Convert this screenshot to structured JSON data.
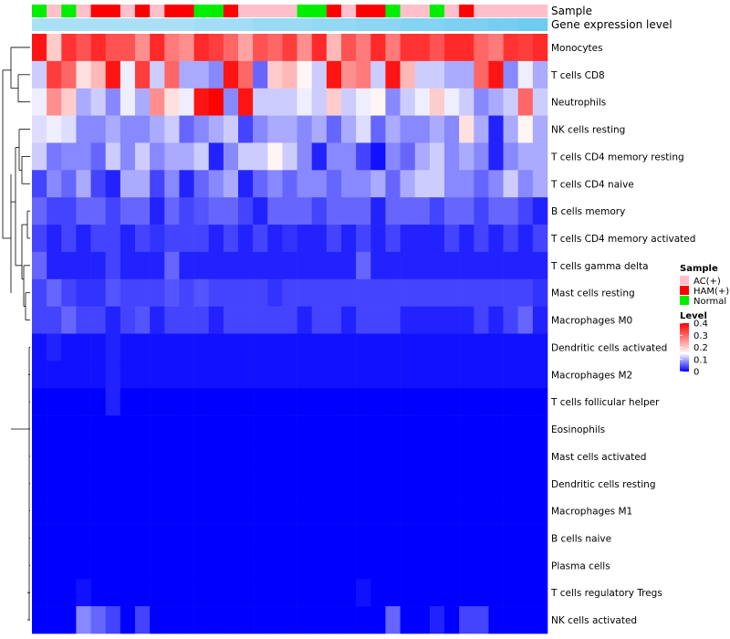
{
  "chart_data": {
    "type": "heatmap",
    "annotation_labels": {
      "sample": "Sample",
      "gene_expression": "Gene expression level"
    },
    "rows": [
      "Monocytes",
      "T cells CD8",
      "Neutrophils",
      "NK cells resting",
      "T cells CD4 memory resting",
      "T cells CD4 naive",
      "B cells memory",
      "T cells CD4 memory activated",
      "T cells gamma delta",
      "Mast cells resting",
      "Macrophages M0",
      "Dendritic cells activated",
      "Macrophages M2",
      "T cells follicular helper",
      "Eosinophils",
      "Mast cells activated",
      "Dendritic cells resting",
      "Macrophages M1",
      "B cells naive",
      "Plasma cells",
      "T cells regulatory  Tregs",
      "NK cells activated"
    ],
    "sample_groups": [
      "Normal",
      "AC(+)",
      "Normal",
      "AC(+)",
      "HAM(+)",
      "HAM(+)",
      "AC(+)",
      "HAM(+)",
      "AC(+)",
      "HAM(+)",
      "HAM(+)",
      "Normal",
      "Normal",
      "HAM(+)",
      "AC(+)",
      "AC(+)",
      "AC(+)",
      "AC(+)",
      "Normal",
      "Normal",
      "HAM(+)",
      "AC(+)",
      "HAM(+)",
      "HAM(+)",
      "Normal",
      "AC(+)",
      "AC(+)",
      "Normal",
      "AC(+)",
      "HAM(+)",
      "AC(+)",
      "AC(+)",
      "AC(+)",
      "AC(+)",
      "AC(+)"
    ],
    "gene_expression_annotation": [
      0.45,
      0.45,
      0.45,
      0.45,
      0.45,
      0.45,
      0.45,
      0.45,
      0.45,
      0.45,
      0.45,
      0.5,
      0.5,
      0.5,
      0.5,
      0.55,
      0.55,
      0.55,
      0.55,
      0.6,
      0.6,
      0.6,
      0.65,
      0.65,
      0.65,
      0.7,
      0.7,
      0.7,
      0.75,
      0.75,
      0.75,
      0.8,
      0.8,
      0.85,
      0.85
    ],
    "values": [
      [
        0.38,
        0.2,
        0.35,
        0.32,
        0.36,
        0.32,
        0.32,
        0.26,
        0.36,
        0.28,
        0.26,
        0.36,
        0.34,
        0.3,
        0.24,
        0.32,
        0.3,
        0.34,
        0.26,
        0.36,
        0.22,
        0.32,
        0.28,
        0.36,
        0.28,
        0.35,
        0.35,
        0.32,
        0.36,
        0.36,
        0.3,
        0.28,
        0.35,
        0.34,
        0.36
      ],
      [
        0.12,
        0.34,
        0.3,
        0.18,
        0.22,
        0.38,
        0.14,
        0.34,
        0.12,
        0.3,
        0.1,
        0.1,
        0.08,
        0.38,
        0.3,
        0.06,
        0.2,
        0.22,
        0.16,
        0.12,
        0.38,
        0.26,
        0.28,
        0.12,
        0.38,
        0.22,
        0.12,
        0.12,
        0.1,
        0.1,
        0.3,
        0.38,
        0.08,
        0.14,
        0.1
      ],
      [
        0.14,
        0.26,
        0.2,
        0.1,
        0.12,
        0.08,
        0.14,
        0.1,
        0.26,
        0.18,
        0.14,
        0.38,
        0.4,
        0.08,
        0.38,
        0.12,
        0.12,
        0.12,
        0.14,
        0.12,
        0.2,
        0.12,
        0.14,
        0.16,
        0.08,
        0.12,
        0.14,
        0.2,
        0.14,
        0.12,
        0.08,
        0.1,
        0.12,
        0.3,
        0.12
      ],
      [
        0.13,
        0.14,
        0.13,
        0.08,
        0.08,
        0.1,
        0.08,
        0.08,
        0.1,
        0.12,
        0.06,
        0.08,
        0.1,
        0.12,
        0.04,
        0.08,
        0.1,
        0.1,
        0.08,
        0.1,
        0.06,
        0.1,
        0.13,
        0.06,
        0.1,
        0.08,
        0.08,
        0.1,
        0.08,
        0.18,
        0.1,
        0.02,
        0.1,
        0.16,
        0.1
      ],
      [
        0.12,
        0.07,
        0.08,
        0.08,
        0.06,
        0.12,
        0.08,
        0.12,
        0.08,
        0.1,
        0.1,
        0.12,
        0.02,
        0.08,
        0.12,
        0.12,
        0.16,
        0.12,
        0.08,
        0.02,
        0.08,
        0.08,
        0.04,
        0.01,
        0.08,
        0.06,
        0.1,
        0.12,
        0.08,
        0.1,
        0.08,
        0.02,
        0.08,
        0.1,
        0.1
      ],
      [
        0.04,
        0.08,
        0.06,
        0.1,
        0.04,
        0.02,
        0.1,
        0.1,
        0.04,
        0.08,
        0.02,
        0.06,
        0.08,
        0.1,
        0.02,
        0.06,
        0.08,
        0.06,
        0.08,
        0.08,
        0.06,
        0.08,
        0.08,
        0.1,
        0.06,
        0.1,
        0.12,
        0.12,
        0.08,
        0.08,
        0.06,
        0.08,
        0.12,
        0.08,
        0.1
      ],
      [
        0.06,
        0.04,
        0.04,
        0.06,
        0.06,
        0.04,
        0.06,
        0.06,
        0.02,
        0.06,
        0.04,
        0.05,
        0.06,
        0.06,
        0.04,
        0.02,
        0.06,
        0.06,
        0.06,
        0.04,
        0.06,
        0.06,
        0.06,
        0.02,
        0.06,
        0.06,
        0.06,
        0.04,
        0.06,
        0.06,
        0.04,
        0.06,
        0.06,
        0.04,
        0.02
      ],
      [
        0.04,
        0.02,
        0.04,
        0.02,
        0.04,
        0.04,
        0.02,
        0.04,
        0.03,
        0.04,
        0.04,
        0.04,
        0.02,
        0.04,
        0.02,
        0.04,
        0.02,
        0.03,
        0.02,
        0.02,
        0.04,
        0.02,
        0.04,
        0.02,
        0.04,
        0.02,
        0.02,
        0.02,
        0.04,
        0.02,
        0.04,
        0.02,
        0.04,
        0.02,
        0.04
      ],
      [
        0.06,
        0.02,
        0.02,
        0.02,
        0.02,
        0.04,
        0.02,
        0.02,
        0.02,
        0.06,
        0.02,
        0.02,
        0.02,
        0.02,
        0.02,
        0.02,
        0.02,
        0.02,
        0.02,
        0.02,
        0.02,
        0.02,
        0.06,
        0.02,
        0.02,
        0.02,
        0.02,
        0.02,
        0.02,
        0.02,
        0.02,
        0.02,
        0.02,
        0.02,
        0.02
      ],
      [
        0.04,
        0.06,
        0.04,
        0.03,
        0.03,
        0.05,
        0.04,
        0.04,
        0.04,
        0.05,
        0.04,
        0.05,
        0.04,
        0.04,
        0.04,
        0.04,
        0.03,
        0.04,
        0.04,
        0.04,
        0.04,
        0.04,
        0.04,
        0.04,
        0.04,
        0.04,
        0.04,
        0.04,
        0.04,
        0.04,
        0.04,
        0.04,
        0.04,
        0.04,
        0.03
      ],
      [
        0.04,
        0.04,
        0.06,
        0.04,
        0.04,
        0.02,
        0.04,
        0.05,
        0.02,
        0.04,
        0.04,
        0.04,
        0.02,
        0.04,
        0.04,
        0.04,
        0.04,
        0.04,
        0.02,
        0.04,
        0.04,
        0.02,
        0.04,
        0.04,
        0.04,
        0.02,
        0.02,
        0.02,
        0.02,
        0.02,
        0.04,
        0.02,
        0.04,
        0.06,
        0.02
      ],
      [
        0.01,
        0.02,
        0.01,
        0.01,
        0.01,
        0.02,
        0.01,
        0.01,
        0.01,
        0.01,
        0.01,
        0.01,
        0.01,
        0.01,
        0.01,
        0.01,
        0.01,
        0.01,
        0.01,
        0.01,
        0.01,
        0.01,
        0.01,
        0.01,
        0.01,
        0.01,
        0.01,
        0.01,
        0.01,
        0.01,
        0.01,
        0.01,
        0.01,
        0.01,
        0.01
      ],
      [
        0.01,
        0.01,
        0.01,
        0.01,
        0.01,
        0.02,
        0.01,
        0.01,
        0.01,
        0.01,
        0.01,
        0.01,
        0.01,
        0.01,
        0.01,
        0.01,
        0.01,
        0.01,
        0.01,
        0.01,
        0.01,
        0.01,
        0.01,
        0.01,
        0.01,
        0.01,
        0.01,
        0.01,
        0.01,
        0.01,
        0.01,
        0.01,
        0.01,
        0.01,
        0.01
      ],
      [
        0,
        0,
        0,
        0,
        0,
        0.02,
        0,
        0,
        0,
        0,
        0,
        0,
        0,
        0,
        0,
        0,
        0,
        0,
        0,
        0,
        0,
        0,
        0,
        0,
        0,
        0,
        0,
        0,
        0,
        0,
        0,
        0,
        0,
        0,
        0
      ],
      [
        0,
        0,
        0,
        0,
        0,
        0,
        0,
        0,
        0,
        0,
        0,
        0,
        0,
        0,
        0,
        0,
        0,
        0,
        0,
        0,
        0,
        0,
        0,
        0,
        0,
        0,
        0,
        0,
        0,
        0,
        0,
        0,
        0,
        0,
        0
      ],
      [
        0,
        0,
        0,
        0,
        0,
        0,
        0,
        0,
        0,
        0,
        0,
        0,
        0,
        0,
        0,
        0,
        0,
        0,
        0,
        0,
        0,
        0,
        0,
        0,
        0,
        0,
        0,
        0,
        0,
        0,
        0,
        0,
        0,
        0,
        0
      ],
      [
        0,
        0,
        0,
        0,
        0,
        0,
        0,
        0,
        0,
        0,
        0,
        0,
        0,
        0,
        0,
        0,
        0,
        0,
        0,
        0,
        0,
        0,
        0,
        0,
        0,
        0,
        0,
        0,
        0,
        0,
        0,
        0,
        0,
        0,
        0
      ],
      [
        0,
        0,
        0,
        0,
        0,
        0,
        0,
        0,
        0,
        0,
        0,
        0,
        0,
        0,
        0,
        0,
        0,
        0,
        0,
        0,
        0,
        0,
        0,
        0,
        0,
        0,
        0,
        0,
        0,
        0,
        0,
        0,
        0,
        0,
        0
      ],
      [
        0,
        0,
        0,
        0,
        0,
        0,
        0,
        0,
        0,
        0,
        0,
        0,
        0,
        0,
        0,
        0,
        0,
        0,
        0,
        0,
        0,
        0,
        0,
        0,
        0,
        0,
        0,
        0,
        0,
        0,
        0,
        0,
        0,
        0,
        0
      ],
      [
        0,
        0,
        0,
        0,
        0,
        0,
        0,
        0,
        0,
        0,
        0,
        0,
        0,
        0,
        0,
        0,
        0,
        0,
        0,
        0,
        0,
        0,
        0,
        0,
        0,
        0,
        0,
        0,
        0,
        0,
        0,
        0,
        0,
        0,
        0
      ],
      [
        0,
        0,
        0,
        0.01,
        0,
        0,
        0,
        0,
        0,
        0,
        0,
        0,
        0,
        0,
        0,
        0,
        0,
        0,
        0,
        0,
        0,
        0,
        0.01,
        0,
        0,
        0,
        0,
        0,
        0,
        0,
        0,
        0,
        0,
        0,
        0
      ],
      [
        0,
        0,
        0,
        0.08,
        0.06,
        0.04,
        0,
        0.04,
        0,
        0,
        0,
        0,
        0,
        0,
        0,
        0,
        0,
        0,
        0,
        0,
        0,
        0,
        0,
        0,
        0.06,
        0,
        0,
        0.02,
        0,
        0.04,
        0.04,
        0,
        0,
        0,
        0
      ]
    ],
    "legend": {
      "sample_title": "Sample",
      "sample_entries": [
        {
          "label": "AC(+)",
          "color": "#FFC0CB"
        },
        {
          "label": "HAM(+)",
          "color": "#FF0000"
        },
        {
          "label": "Normal",
          "color": "#00EE00"
        }
      ],
      "level_title": "Level",
      "level_ticks": [
        "0.4",
        "0.3",
        "0.2",
        "0.1",
        "0"
      ],
      "level_tick_values": [
        0.4,
        0.3,
        0.2,
        0.1,
        0
      ]
    },
    "color_scale": {
      "low": "#0000FF",
      "mid": "#FFFFFF",
      "high": "#FF0000",
      "min": 0,
      "mid_value": 0.15,
      "max": 0.4
    },
    "gene_expression_colors": {
      "low": "#E8F7FC",
      "high": "#5BC3EE"
    }
  }
}
